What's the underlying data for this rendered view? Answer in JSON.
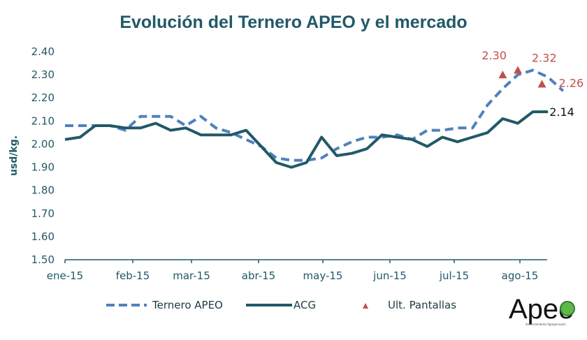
{
  "chart_data": {
    "type": "line",
    "title": "Evolución del Ternero APEO y el mercado",
    "xlabel": "",
    "ylabel": "usd/kg.",
    "ylim": [
      1.5,
      2.4
    ],
    "y_ticks": [
      "2.40",
      "2.30",
      "2.20",
      "2.10",
      "2.00",
      "1.90",
      "1.80",
      "1.70",
      "1.60",
      "1.50"
    ],
    "x_ticks": [
      "ene-15",
      "feb-15",
      "mar-15",
      "abr-15",
      "may-15",
      "jun-15",
      "jul-15",
      "ago-15"
    ],
    "grid": false,
    "legend_position": "bottom",
    "series": [
      {
        "name": "Ternero APEO",
        "style": "dashed",
        "color": "#4f81bd",
        "values": [
          2.08,
          2.08,
          2.08,
          2.08,
          2.06,
          2.12,
          2.12,
          2.12,
          2.08,
          2.12,
          2.07,
          2.05,
          2.02,
          1.99,
          1.94,
          1.93,
          1.93,
          1.94,
          1.98,
          2.01,
          2.03,
          2.03,
          2.04,
          2.02,
          2.06,
          2.06,
          2.07,
          2.07,
          2.17,
          2.24,
          2.3,
          2.32,
          2.29,
          2.23
        ]
      },
      {
        "name": "ACG",
        "style": "solid",
        "color": "#215968",
        "values": [
          2.02,
          2.03,
          2.08,
          2.08,
          2.07,
          2.07,
          2.09,
          2.06,
          2.07,
          2.04,
          2.04,
          2.04,
          2.06,
          1.99,
          1.92,
          1.9,
          1.92,
          2.03,
          1.95,
          1.96,
          1.98,
          2.04,
          2.03,
          2.02,
          1.99,
          2.03,
          2.01,
          2.03,
          2.05,
          2.11,
          2.09,
          2.14,
          2.14
        ]
      },
      {
        "name": "Ult. Pantallas",
        "style": "marker-triangle",
        "color": "#c0504d",
        "points": [
          {
            "index": 29,
            "value": 2.3,
            "label": "2.30"
          },
          {
            "index": 30,
            "value": 2.32,
            "label": "2.32"
          },
          {
            "index": 31.6,
            "value": 2.26,
            "label": "2.26"
          }
        ]
      }
    ],
    "annotations": [
      {
        "series": "ACG",
        "label": "2.14"
      }
    ]
  },
  "legend": {
    "items": [
      "Ternero APEO",
      "ACG",
      "Ult. Pantallas"
    ]
  },
  "logo": {
    "text": "Apeo",
    "subtitle": "Asesoramiento Agropecuario"
  }
}
